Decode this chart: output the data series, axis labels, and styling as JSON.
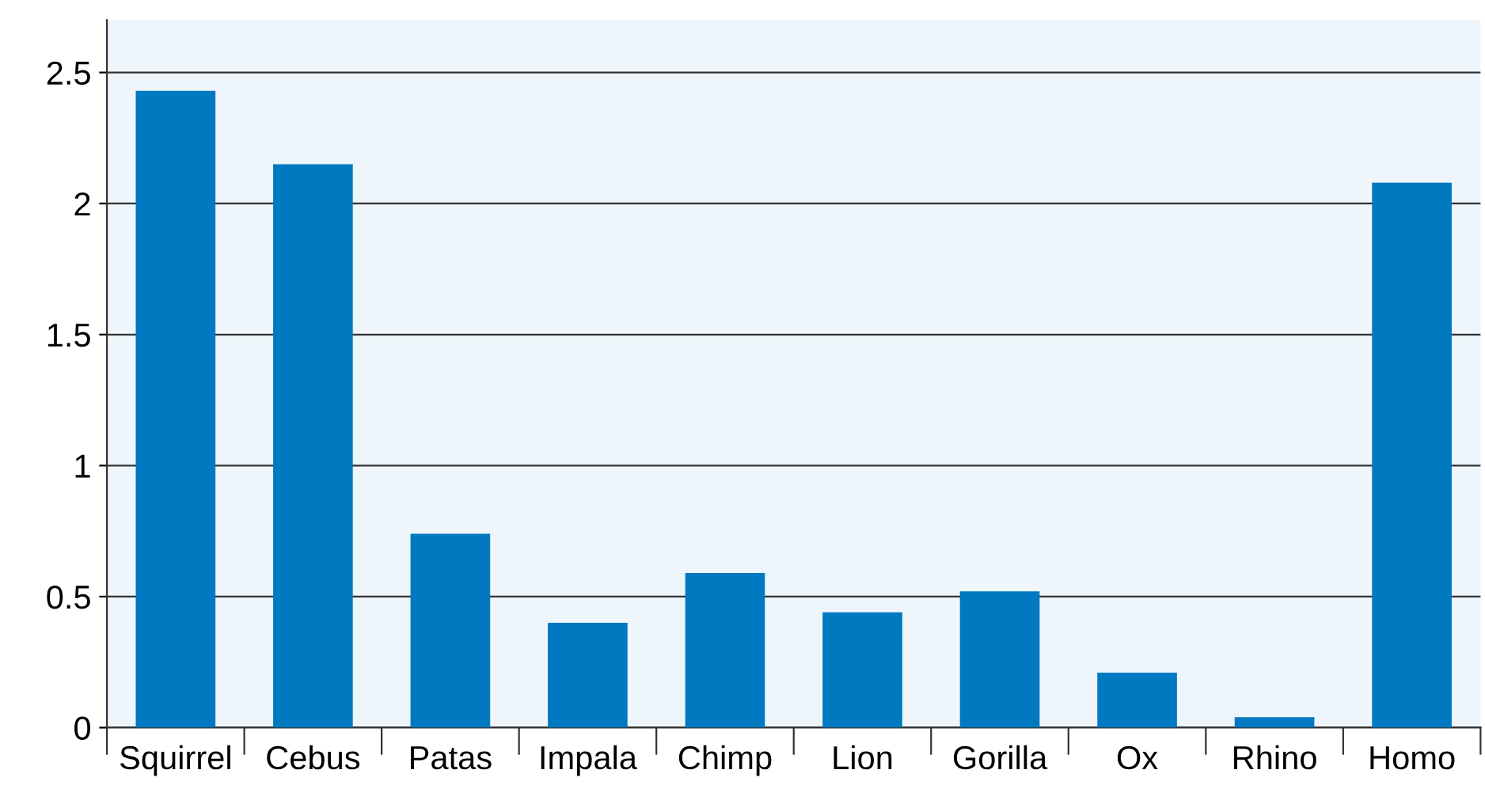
{
  "chart_data": {
    "type": "bar",
    "categories": [
      "Squirrel",
      "Cebus",
      "Patas",
      "Impala",
      "Chimp",
      "Lion",
      "Gorilla",
      "Ox",
      "Rhino",
      "Homo"
    ],
    "values": [
      2.43,
      2.15,
      0.74,
      0.4,
      0.59,
      0.44,
      0.52,
      0.21,
      0.04,
      2.08
    ],
    "color": "#0079c1",
    "ylim": [
      0,
      2.7
    ],
    "yticks": [
      0,
      0.5,
      1,
      1.5,
      2,
      2.5
    ],
    "grid": "y"
  }
}
